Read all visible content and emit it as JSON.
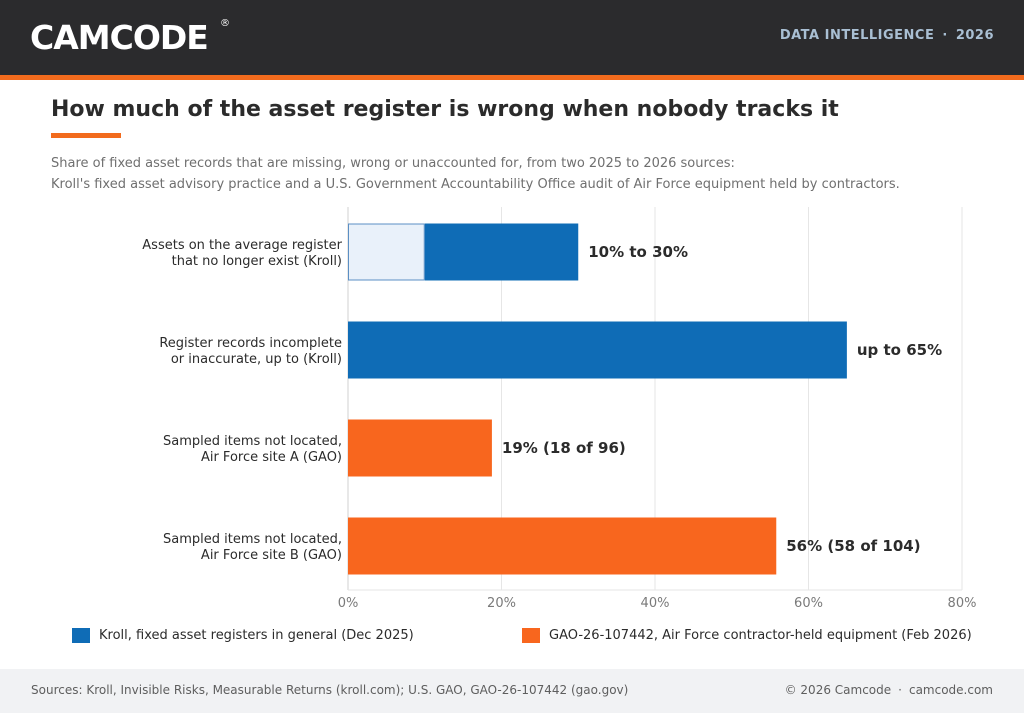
{
  "header": {
    "logo_text": "CAMCODE",
    "logo_mark": "®",
    "tagline_left": "DATA INTELLIGENCE",
    "tagline_sep": "·",
    "tagline_right": "2026",
    "colors": {
      "bar": "#2b2b2d",
      "accent": "#f26b1d"
    }
  },
  "title": "How much of the asset register is wrong when nobody tracks it",
  "subtitle_line1": "Share of fixed asset records that are missing, wrong or unaccounted for, from two 2025 to 2026 sources:",
  "subtitle_line2": "Kroll's fixed asset advisory practice and a U.S. Government Accountability Office audit of Air Force equipment held by contractors.",
  "chart_data": {
    "type": "bar",
    "orientation": "horizontal",
    "categories": [
      [
        "Assets on the average register",
        "that no longer exist (Kroll)"
      ],
      [
        "Register records incomplete",
        "or inaccurate, up to (Kroll)"
      ],
      [
        "Sampled items not located,",
        "Air Force site A (GAO)"
      ],
      [
        "Sampled items not located,",
        "Air Force site B (GAO)"
      ]
    ],
    "bars": [
      {
        "low": 10,
        "high": 30,
        "value_label": "10% to 30%",
        "source": "kroll"
      },
      {
        "low": 0,
        "high": 65,
        "value_label": "up to 65%",
        "source": "kroll"
      },
      {
        "low": 0,
        "high": 18.75,
        "value_label": "19%  (18 of 96)",
        "source": "gao"
      },
      {
        "low": 0,
        "high": 55.8,
        "value_label": "56%  (58 of 104)",
        "source": "gao"
      }
    ],
    "xlim": [
      0,
      80
    ],
    "ticks": [
      0,
      20,
      40,
      60,
      80
    ],
    "tick_labels": [
      "0%",
      "20%",
      "40%",
      "60%",
      "80%"
    ],
    "grid": true,
    "legend_position": "bottom",
    "colors": {
      "kroll": "#0f6cb6",
      "gao": "#f8661e",
      "range_light": "#e9f1fa",
      "range_border": "#5b8fc4"
    }
  },
  "legend": [
    {
      "label": "Kroll, fixed asset registers in general (Dec 2025)",
      "color": "#0f6cb6"
    },
    {
      "label": "GAO-26-107442, Air Force contractor-held equipment (Feb 2026)",
      "color": "#f8661e"
    }
  ],
  "footer": {
    "sources": "Sources: Kroll, Invisible Risks, Measurable Returns (kroll.com); U.S. GAO, GAO-26-107442 (gao.gov)",
    "copyright": "© 2026 Camcode",
    "sep": "·",
    "site": "camcode.com"
  }
}
